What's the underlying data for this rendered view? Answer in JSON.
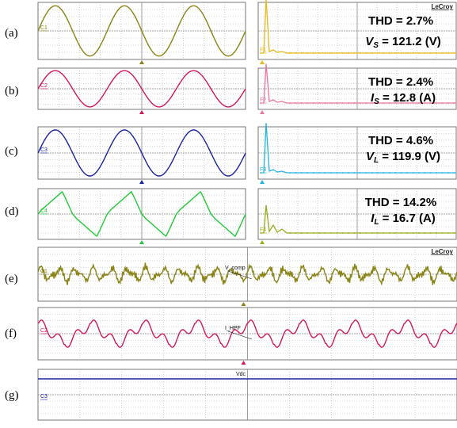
{
  "brand": "LeCroy",
  "row_labels": [
    "(a)",
    "(b)",
    "(c)",
    "(d)",
    "(e)",
    "(f)",
    "(g)"
  ],
  "colors": {
    "ch1": "#8a8416",
    "ch2": "#d2175e",
    "ch3": "#1a25a0",
    "ch4": "#22c93a",
    "fft1": "#e8b81a",
    "fft2": "#e874a0",
    "fft3": "#22b4e0",
    "fft4": "#9aaa1c",
    "grid": "#b0b0b0"
  },
  "panels_top": [
    {
      "label": "(a)",
      "channel": "C1",
      "color_key": "ch1",
      "shape": "sine",
      "cycles": 3,
      "thd": "THD = 2.7%",
      "meas": "V",
      "meas_sub": "S",
      "meas_val": " = 121.2 (V)",
      "fft_color_key": "fft1",
      "fft_label": "F1"
    },
    {
      "label": "(b)",
      "channel": "C2",
      "color_key": "ch2",
      "shape": "sine",
      "cycles": 3,
      "thd": "THD = 2.4%",
      "meas": "I",
      "meas_sub": "S",
      "meas_val": " = 12.8 (A)",
      "fft_color_key": "fft2",
      "fft_label": "F2"
    },
    {
      "label": "(c)",
      "channel": "C3",
      "color_key": "ch3",
      "shape": "sine",
      "cycles": 3,
      "thd": "THD = 4.6%",
      "meas": "V",
      "meas_sub": "L",
      "meas_val": " = 119.9 (V)",
      "fft_color_key": "fft3",
      "fft_label": "F3"
    },
    {
      "label": "(d)",
      "channel": "C4",
      "color_key": "ch4",
      "shape": "nonlinear",
      "cycles": 3,
      "thd": "THD = 14.2%",
      "meas": "I",
      "meas_sub": "L",
      "meas_val": " = 16.7 (A)",
      "fft_color_key": "fft4",
      "fft_label": "F4"
    }
  ],
  "panels_bottom": [
    {
      "label": "(e)",
      "channel": "C1",
      "color_key": "ch1",
      "trace_label": "V_comp",
      "shape": "noisy"
    },
    {
      "label": "(f)",
      "channel": "C2",
      "color_key": "ch2",
      "trace_label": "I_HPF",
      "shape": "hpf"
    },
    {
      "label": "(g)",
      "channel": "C3",
      "color_key": "ch3",
      "trace_label": "Vdc",
      "shape": "dc"
    }
  ],
  "chart_data": [
    {
      "type": "line",
      "title": "",
      "series": [
        {
          "name": "C1",
          "shape": "sinusoid",
          "cycles": 3
        }
      ],
      "annotations": [
        "THD = 2.7%",
        "V_S = 121.2 (V)"
      ]
    },
    {
      "type": "line",
      "title": "",
      "series": [
        {
          "name": "C2",
          "shape": "sinusoid",
          "cycles": 3
        }
      ],
      "annotations": [
        "THD = 2.4%",
        "I_S = 12.8 (A)"
      ]
    },
    {
      "type": "line",
      "title": "",
      "series": [
        {
          "name": "C3",
          "shape": "sinusoid",
          "cycles": 3
        }
      ],
      "annotations": [
        "THD = 4.6%",
        "V_L = 119.9 (V)"
      ]
    },
    {
      "type": "line",
      "title": "",
      "series": [
        {
          "name": "C4",
          "shape": "rectifier-load current",
          "cycles": 3
        }
      ],
      "annotations": [
        "THD = 14.2%",
        "I_L = 16.7 (A)"
      ]
    },
    {
      "type": "line",
      "title": "",
      "series": [
        {
          "name": "V_comp"
        }
      ]
    },
    {
      "type": "line",
      "title": "",
      "series": [
        {
          "name": "I_HPF"
        }
      ]
    },
    {
      "type": "line",
      "title": "",
      "series": [
        {
          "name": "Vdc",
          "shape": "constant"
        }
      ]
    }
  ]
}
